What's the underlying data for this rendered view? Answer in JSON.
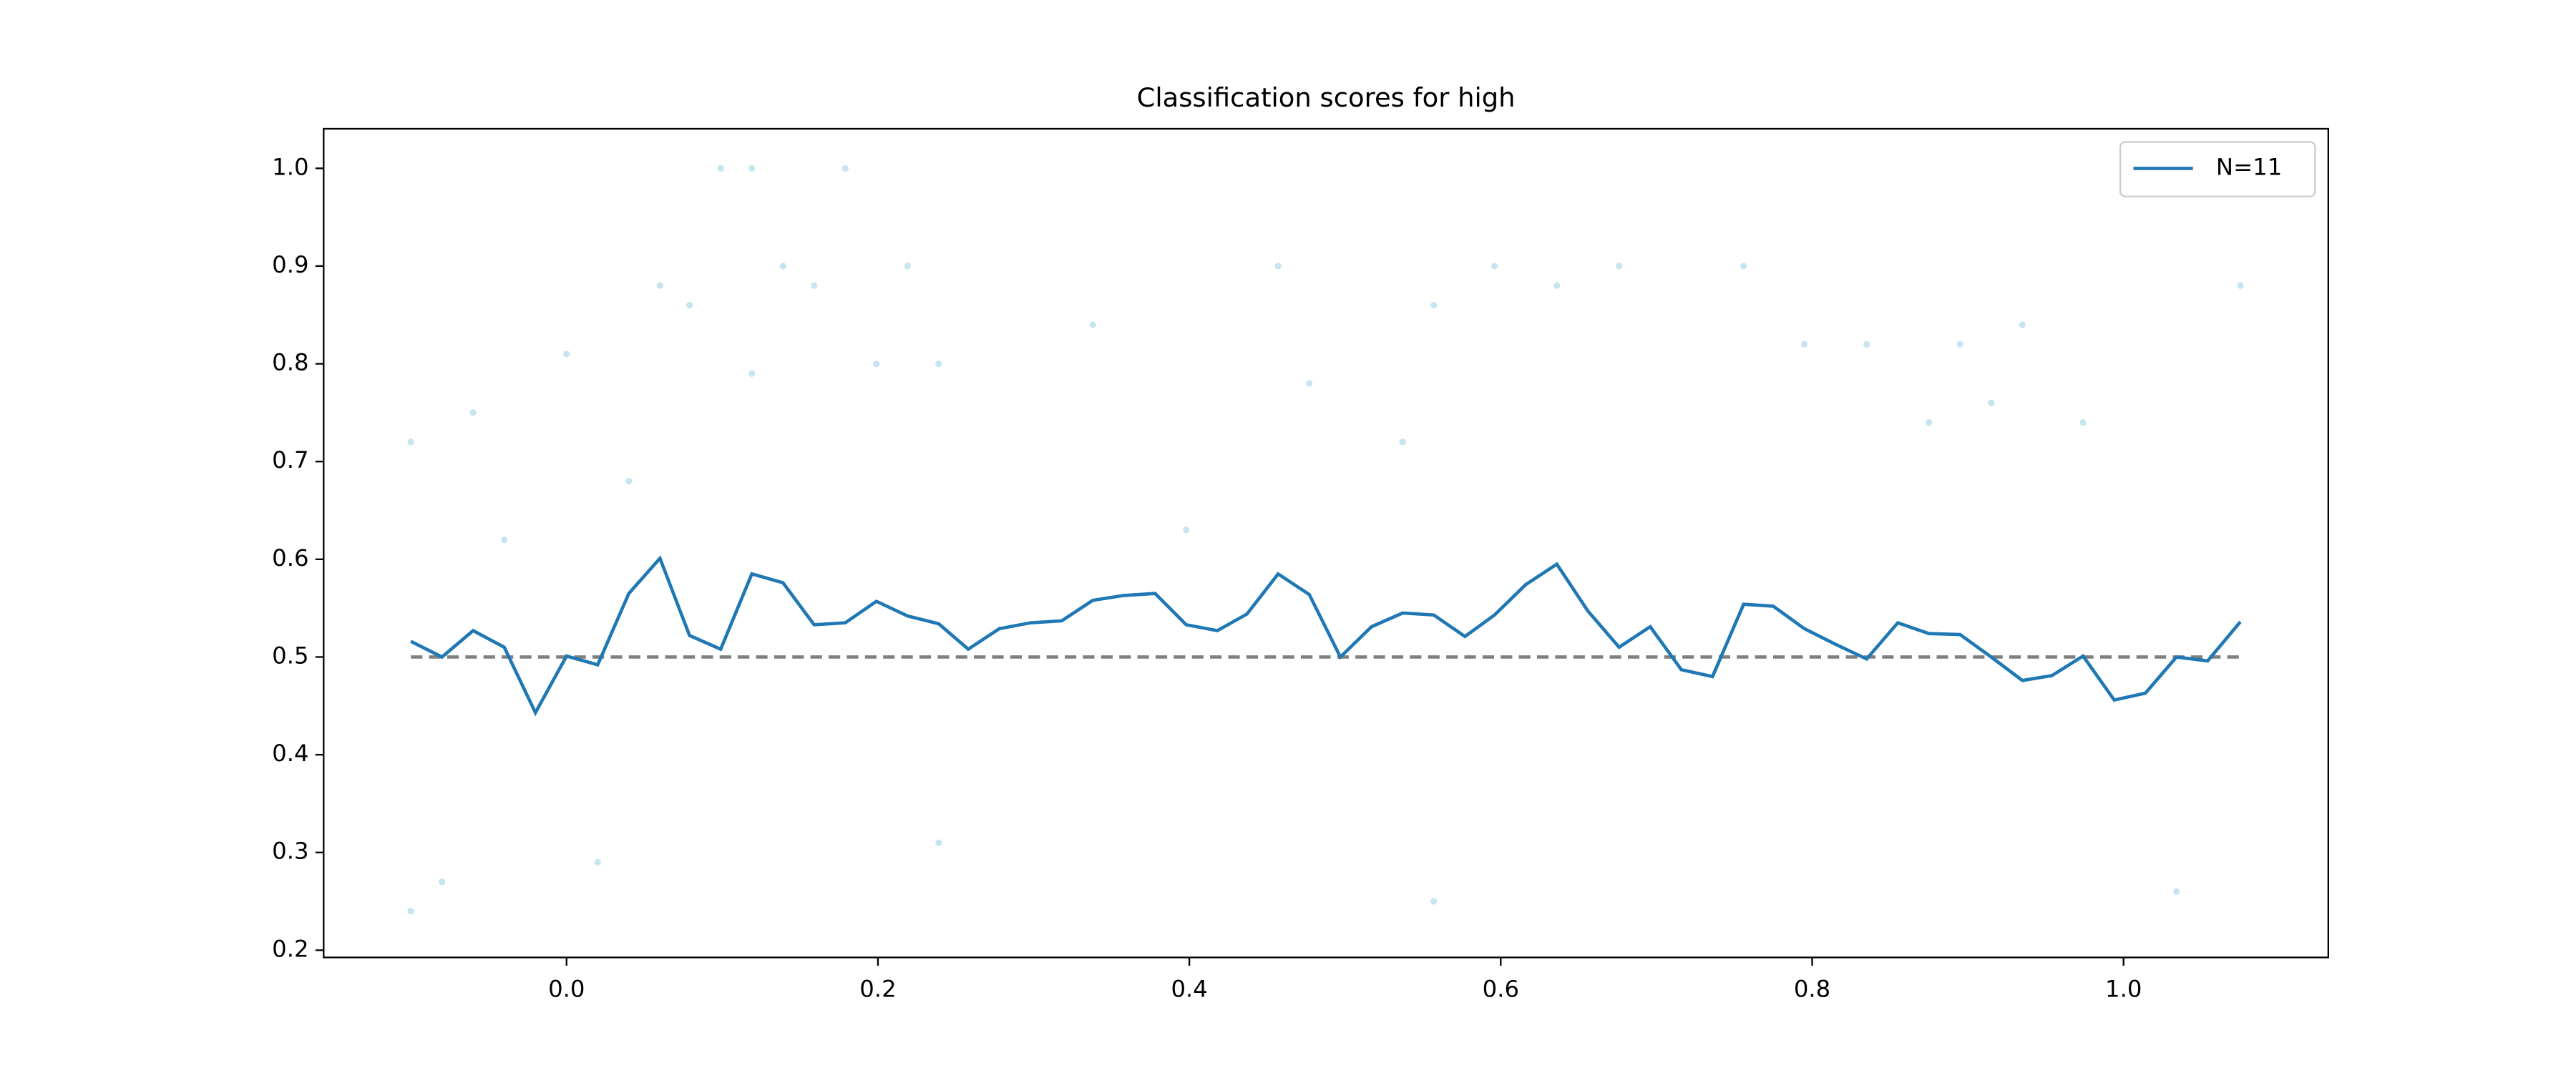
{
  "chart_data": {
    "type": "line",
    "title": "Classification scores for high",
    "x": [
      -0.1,
      -0.08,
      -0.06,
      -0.04,
      -0.02,
      0.0,
      0.02,
      0.04,
      0.06,
      0.079,
      0.099,
      0.119,
      0.139,
      0.159,
      0.179,
      0.199,
      0.219,
      0.239,
      0.258,
      0.278,
      0.298,
      0.318,
      0.338,
      0.358,
      0.378,
      0.398,
      0.418,
      0.437,
      0.457,
      0.477,
      0.497,
      0.517,
      0.537,
      0.557,
      0.577,
      0.596,
      0.616,
      0.636,
      0.656,
      0.676,
      0.696,
      0.716,
      0.736,
      0.756,
      0.775,
      0.795,
      0.815,
      0.835,
      0.855,
      0.875,
      0.895,
      0.915,
      0.935,
      0.954,
      0.974,
      0.994,
      1.014,
      1.034,
      1.054,
      1.075
    ],
    "series": [
      {
        "name": "N=11",
        "color": "#1f77b4",
        "values": [
          0.516,
          0.5,
          0.527,
          0.51,
          0.443,
          0.501,
          0.492,
          0.565,
          0.601,
          0.522,
          0.508,
          0.585,
          0.576,
          0.533,
          0.535,
          0.557,
          0.542,
          0.534,
          0.508,
          0.529,
          0.535,
          0.537,
          0.558,
          0.563,
          0.565,
          0.533,
          0.527,
          0.544,
          0.585,
          0.564,
          0.5,
          0.531,
          0.545,
          0.543,
          0.521,
          0.543,
          0.574,
          0.595,
          0.547,
          0.51,
          0.531,
          0.487,
          0.48,
          0.554,
          0.552,
          0.529,
          0.513,
          0.498,
          0.535,
          0.524,
          0.523,
          0.5,
          0.476,
          0.481,
          0.501,
          0.456,
          0.463,
          0.5,
          0.496,
          0.536
        ]
      }
    ],
    "points": {
      "color": "#9fd3e8",
      "x": [
        -0.1,
        -0.08,
        -0.06,
        -0.04,
        0.0,
        0.02,
        0.04,
        0.06,
        0.079,
        0.099,
        0.119,
        0.139,
        0.159,
        0.179,
        0.199,
        0.219,
        0.239,
        0.338,
        0.398,
        0.457,
        0.477,
        0.537,
        0.557,
        0.596,
        0.636,
        0.676,
        0.756,
        0.795,
        0.835,
        0.875,
        0.895,
        0.935,
        0.974,
        1.034,
        1.075,
        -0.1,
        0.119,
        0.239,
        0.557,
        0.915
      ],
      "y": [
        0.72,
        0.27,
        0.75,
        0.62,
        0.81,
        0.29,
        0.68,
        0.88,
        0.86,
        1.0,
        1.0,
        0.9,
        0.88,
        1.0,
        0.8,
        0.9,
        0.8,
        0.84,
        0.63,
        0.9,
        0.78,
        0.72,
        0.86,
        0.9,
        0.88,
        0.9,
        0.9,
        0.82,
        0.82,
        0.74,
        0.82,
        0.84,
        0.74,
        0.26,
        0.88,
        0.24,
        0.79,
        0.31,
        0.25,
        0.76
      ]
    },
    "reference_line": {
      "value": 0.5,
      "color": "#808080"
    },
    "xlim": [
      -0.156,
      1.1315
    ],
    "ylim": [
      0.1926,
      1.0405
    ],
    "xticks": [
      {
        "value": 0,
        "label": "0.0"
      },
      0.2,
      0.4,
      0.6,
      0.8,
      {
        "value": 1,
        "label": "1.0"
      }
    ],
    "yticks": [
      0.2,
      0.3,
      0.4,
      0.5,
      0.6,
      0.7,
      0.8,
      0.9,
      {
        "value": 1,
        "label": "1.0"
      }
    ],
    "legend": "upper right"
  }
}
